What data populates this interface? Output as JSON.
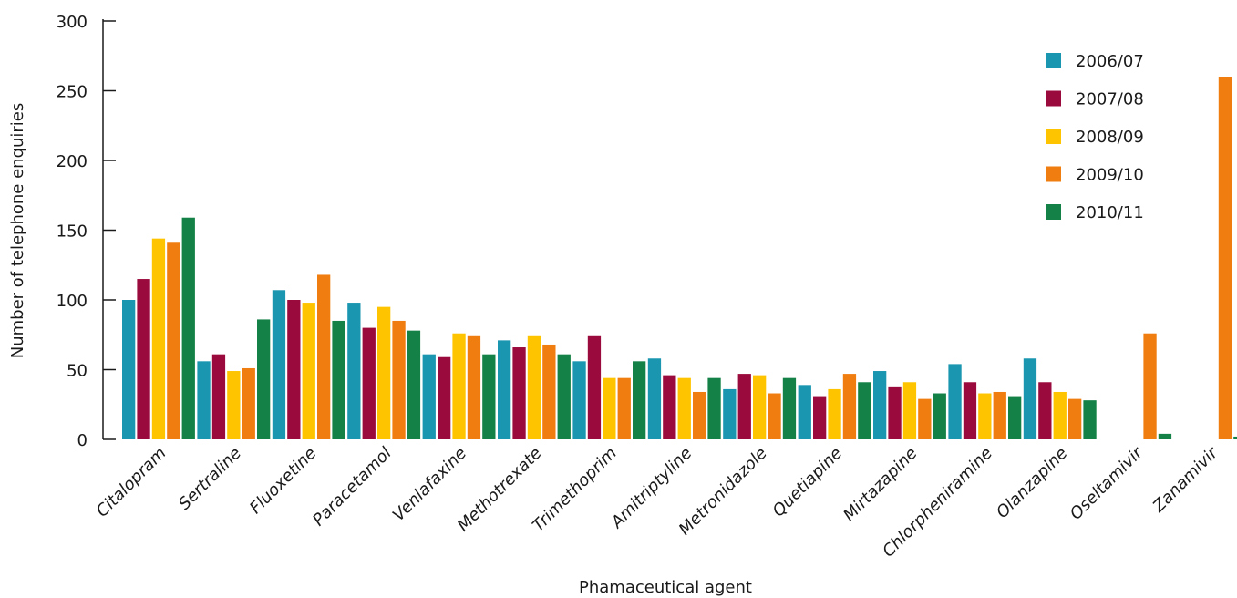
{
  "chart_data": {
    "type": "bar",
    "title": "",
    "xlabel": "Phamaceutical agent",
    "ylabel": "Number of telephone enquiries",
    "ylim": [
      0,
      300
    ],
    "yticks": [
      0,
      50,
      100,
      150,
      200,
      250,
      300
    ],
    "grid": false,
    "legend_position": "top-right",
    "categories": [
      "Citalopram",
      "Sertraline",
      "Fluoxetine",
      "Paracetamol",
      "Venlafaxine",
      "Methotrexate",
      "Trimethoprim",
      "Amitriptyline",
      "Metronidazole",
      "Quetiapine",
      "Mirtazapine",
      "Chlorpheniramine",
      "Olanzapine",
      "Oseltamivir",
      "Zanamivir"
    ],
    "series": [
      {
        "name": "2006/07",
        "color": "#1a96b0",
        "values": [
          100,
          56,
          107,
          98,
          61,
          71,
          56,
          58,
          36,
          39,
          49,
          54,
          58,
          0,
          0
        ]
      },
      {
        "name": "2007/08",
        "color": "#9b0a3c",
        "values": [
          115,
          61,
          100,
          80,
          59,
          66,
          74,
          46,
          47,
          31,
          38,
          41,
          41,
          0,
          0
        ]
      },
      {
        "name": "2008/09",
        "color": "#ffc400",
        "values": [
          144,
          49,
          98,
          95,
          76,
          74,
          44,
          44,
          46,
          36,
          41,
          33,
          34,
          0,
          0
        ]
      },
      {
        "name": "2009/10",
        "color": "#f07d0f",
        "values": [
          141,
          51,
          118,
          85,
          74,
          68,
          44,
          34,
          33,
          47,
          29,
          34,
          29,
          76,
          260
        ]
      },
      {
        "name": "2010/11",
        "color": "#148247",
        "values": [
          159,
          86,
          85,
          78,
          61,
          61,
          56,
          44,
          44,
          41,
          33,
          31,
          28,
          4,
          2
        ]
      }
    ]
  }
}
